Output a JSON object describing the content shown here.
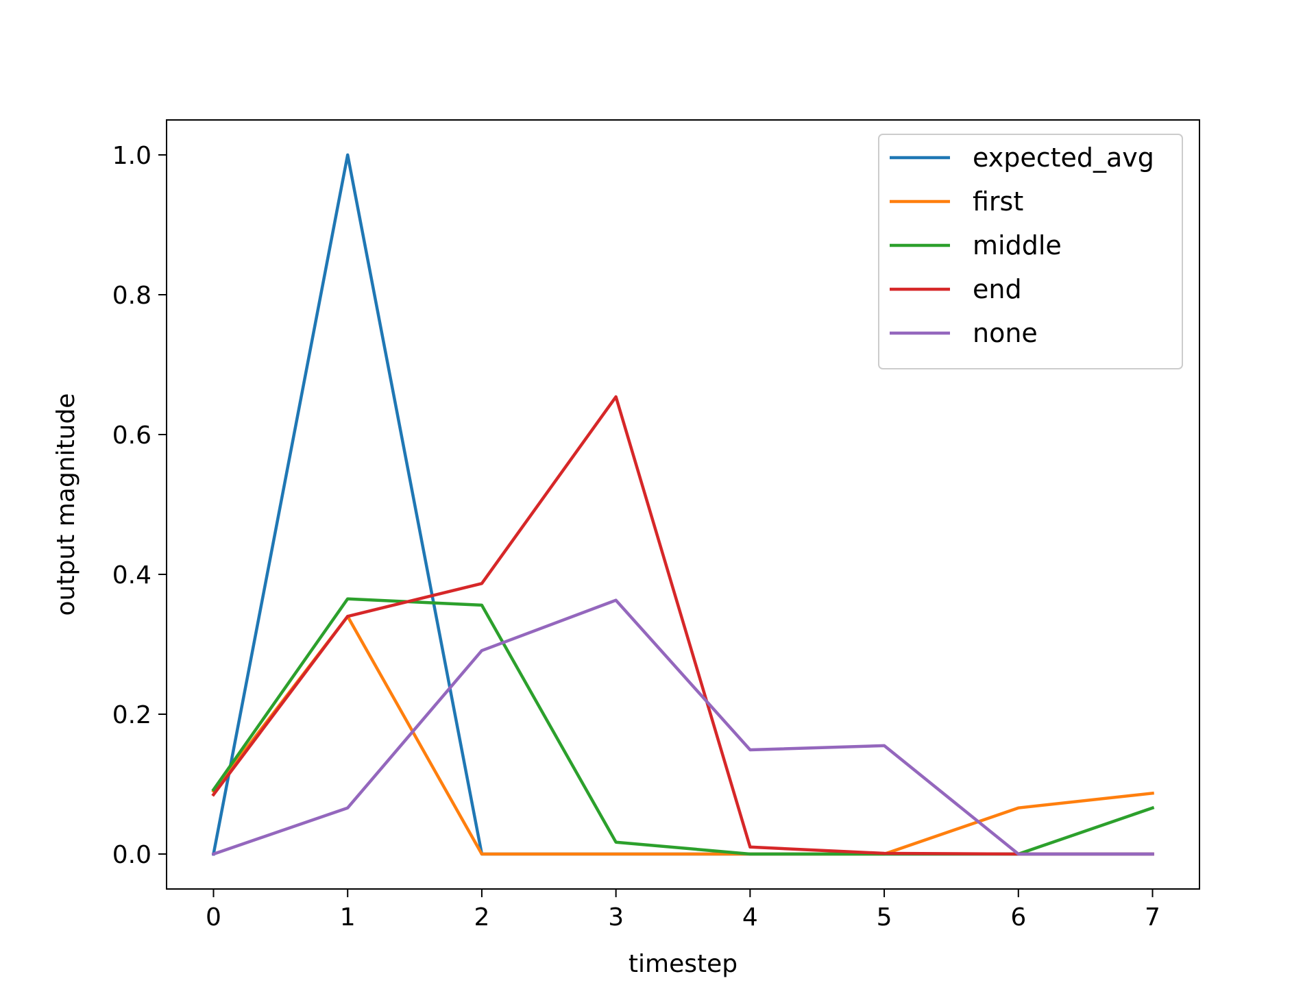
{
  "chart_data": {
    "type": "line",
    "xlabel": "timestep",
    "ylabel": "output magnitude",
    "xlim": [
      -0.35,
      7.35
    ],
    "ylim": [
      -0.05,
      1.05
    ],
    "x": [
      0,
      1,
      2,
      3,
      4,
      5,
      6,
      7
    ],
    "x_ticks": [
      "0",
      "1",
      "2",
      "3",
      "4",
      "5",
      "6",
      "7"
    ],
    "y_ticks": [
      "0.0",
      "0.2",
      "0.4",
      "0.6",
      "0.8",
      "1.0"
    ],
    "grid": false,
    "legend_position": "top-right",
    "series": [
      {
        "name": "expected_avg",
        "color": "#1f77b4",
        "values": [
          0.0,
          1.0,
          0.0,
          0.0,
          0.0,
          0.0,
          0.0,
          0.0
        ]
      },
      {
        "name": "first",
        "color": "#ff7f0e",
        "values": [
          0.09,
          0.34,
          0.0,
          0.0,
          0.0,
          0.0,
          0.066,
          0.087
        ]
      },
      {
        "name": "middle",
        "color": "#2ca02c",
        "values": [
          0.092,
          0.365,
          0.356,
          0.017,
          0.0,
          0.0,
          0.0,
          0.066
        ]
      },
      {
        "name": "end",
        "color": "#d62728",
        "values": [
          0.085,
          0.34,
          0.387,
          0.654,
          0.01,
          0.001,
          0.0,
          0.0
        ]
      },
      {
        "name": "none",
        "color": "#9467bd",
        "values": [
          0.0,
          0.066,
          0.291,
          0.363,
          0.149,
          0.155,
          0.0,
          0.0
        ]
      }
    ]
  }
}
